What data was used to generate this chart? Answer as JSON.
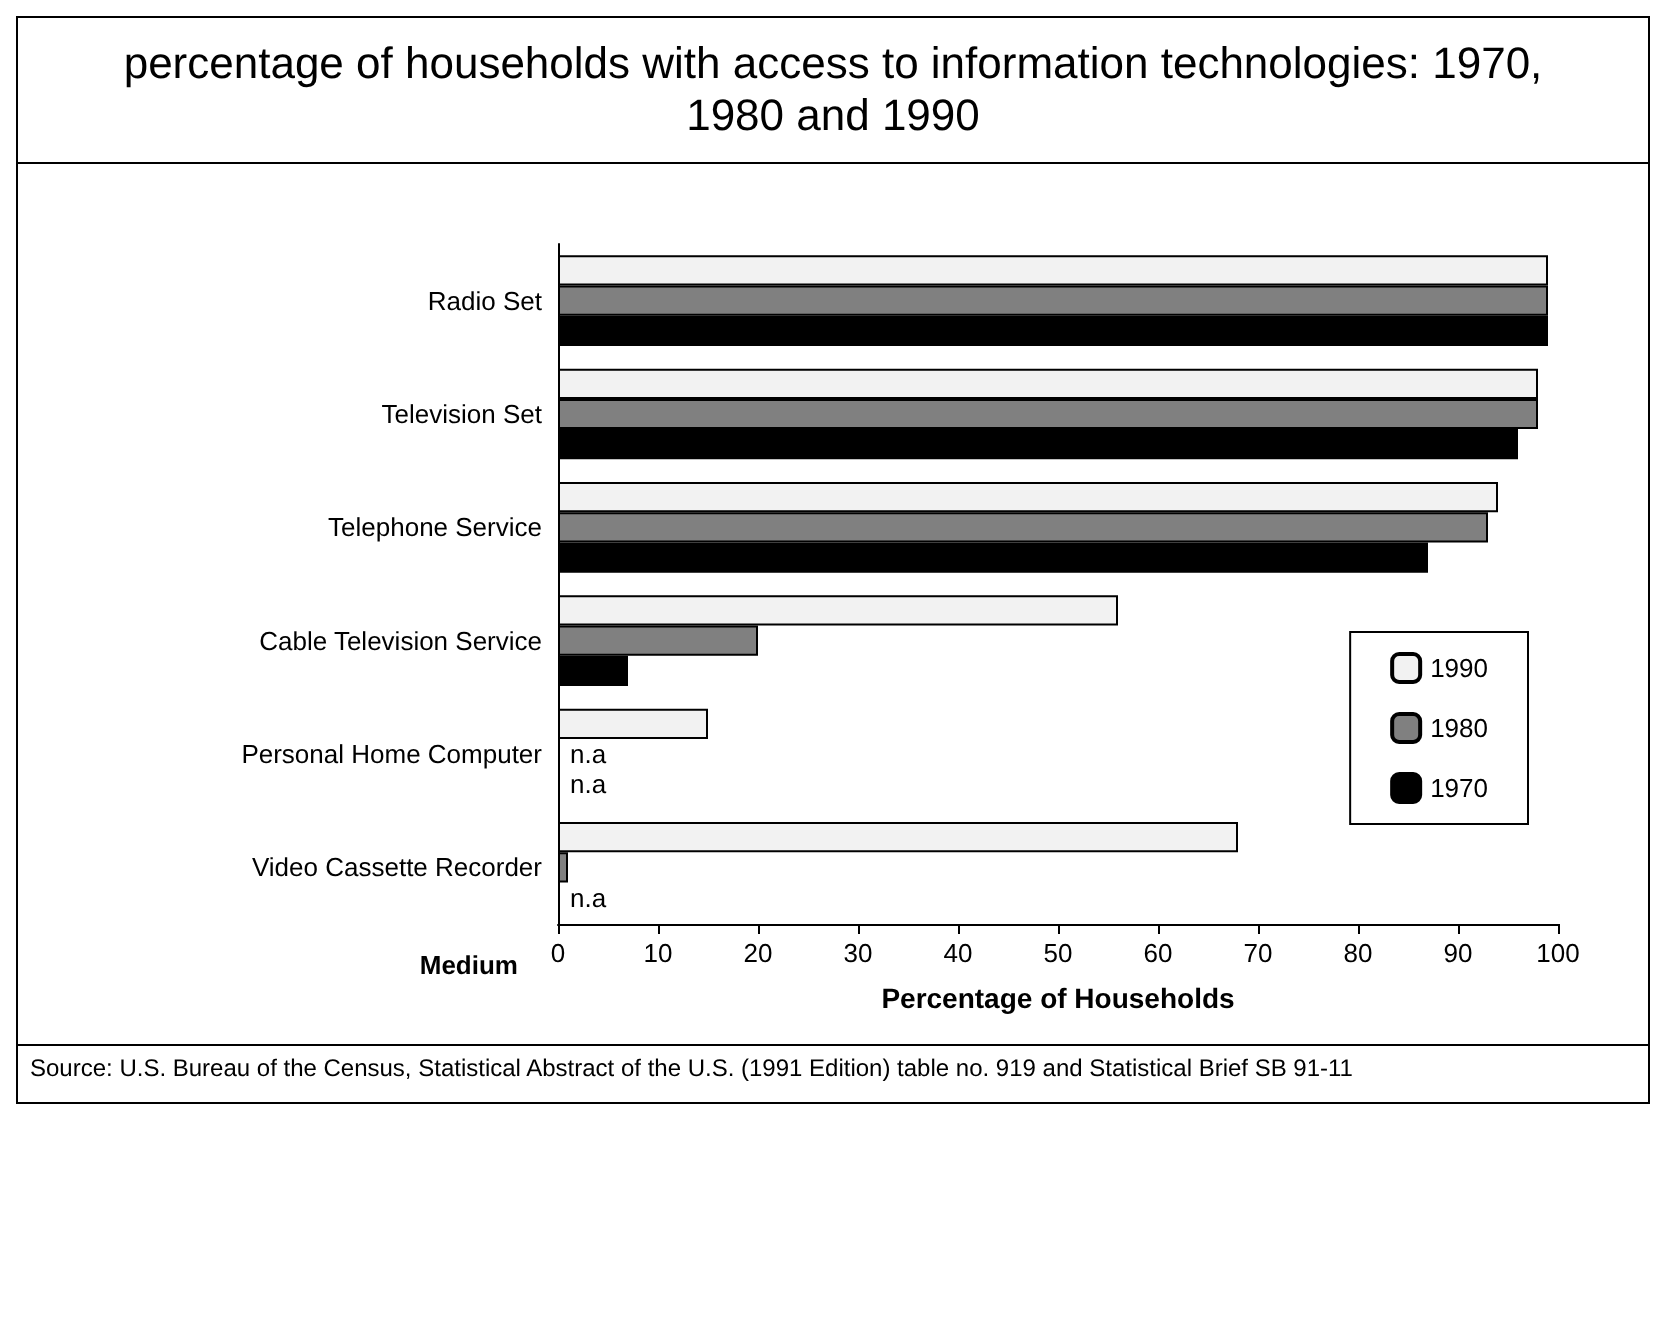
{
  "chart_data": {
    "type": "bar",
    "orientation": "horizontal",
    "title": "percentage of households with access to information technologies: 1970, 1980 and 1990",
    "xlabel": "Percentage of Households",
    "ylabel": "Medium",
    "categories": [
      "Radio Set",
      "Television Set",
      "Telephone Service",
      "Cable Television Service",
      "Personal Home Computer",
      "Video Cassette Recorder"
    ],
    "series": [
      {
        "name": "1990",
        "color": "#f2f2f2",
        "values": [
          99,
          98,
          94,
          56,
          15,
          68
        ]
      },
      {
        "name": "1980",
        "color": "#808080",
        "values": [
          99,
          98,
          93,
          20,
          null,
          1
        ],
        "value_labels": [
          null,
          null,
          null,
          null,
          "n.a",
          null
        ]
      },
      {
        "name": "1970",
        "color": "#000000",
        "values": [
          99,
          96,
          87,
          7,
          null,
          null
        ],
        "value_labels": [
          null,
          null,
          null,
          null,
          "n.a",
          "n.a"
        ]
      }
    ],
    "xlim": [
      0,
      100
    ],
    "xticks": [
      0,
      10,
      20,
      30,
      40,
      50,
      60,
      70,
      80,
      90,
      100
    ],
    "grid": false,
    "legend": "bottom right",
    "annotations": [
      "Source: U.S. Bureau of the Census, Statistical Abstract of the U.S. (1991 Edition) table no. 919 and Statistical Brief SB 91-11"
    ]
  }
}
